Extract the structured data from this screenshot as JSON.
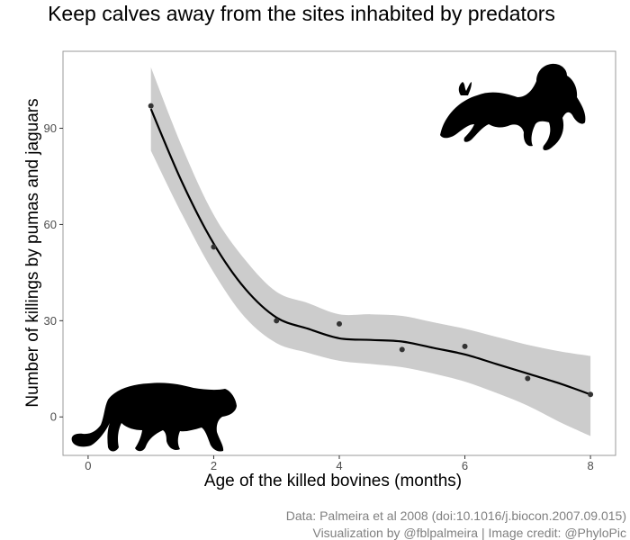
{
  "chart_data": {
    "type": "scatter",
    "title": "Keep calves away from the sites inhabited by predators",
    "xlabel": "Age of the killed bovines (months)",
    "ylabel": "Number of killings by pumas and jaguars",
    "xlim": [
      -0.4,
      8.4
    ],
    "ylim": [
      -12,
      114
    ],
    "xticks": [
      0,
      2,
      4,
      6,
      8
    ],
    "yticks": [
      0,
      30,
      60,
      90
    ],
    "grid": false,
    "x": [
      1,
      2,
      3,
      4,
      5,
      6,
      7,
      8
    ],
    "y": [
      97,
      53,
      30,
      29,
      21,
      22,
      12,
      7
    ],
    "smooth": {
      "x": [
        1,
        1.5,
        2,
        2.5,
        3,
        3.5,
        4,
        4.5,
        5,
        5.5,
        6,
        6.5,
        7,
        7.5,
        8
      ],
      "y": [
        96,
        73,
        54,
        40,
        31,
        27.5,
        24.5,
        24,
        23.5,
        21.5,
        19.5,
        16.5,
        13.5,
        10.5,
        7
      ],
      "lower": [
        83,
        63,
        45,
        31,
        23,
        20,
        17.5,
        16.5,
        15.5,
        13.5,
        11,
        7.5,
        3.5,
        -1.5,
        -6
      ],
      "upper": [
        109,
        84,
        63,
        49,
        39,
        35.5,
        32,
        32,
        31.5,
        29.5,
        27.5,
        25,
        22.5,
        20.5,
        19
      ]
    },
    "colors": {
      "points": "#333333",
      "line": "#000000",
      "ribbon": "#cccccc",
      "panel_border": "#999999"
    },
    "silhouettes": [
      "jaguar-silhouette-icon",
      "puma-silhouette-icon"
    ],
    "caption_lines": [
      "Data: Palmeira et al 2008 (doi:10.1016/j.biocon.2007.09.015)",
      "Visualization by @fblpalmeira | Image credit: @PhyloPic"
    ]
  }
}
